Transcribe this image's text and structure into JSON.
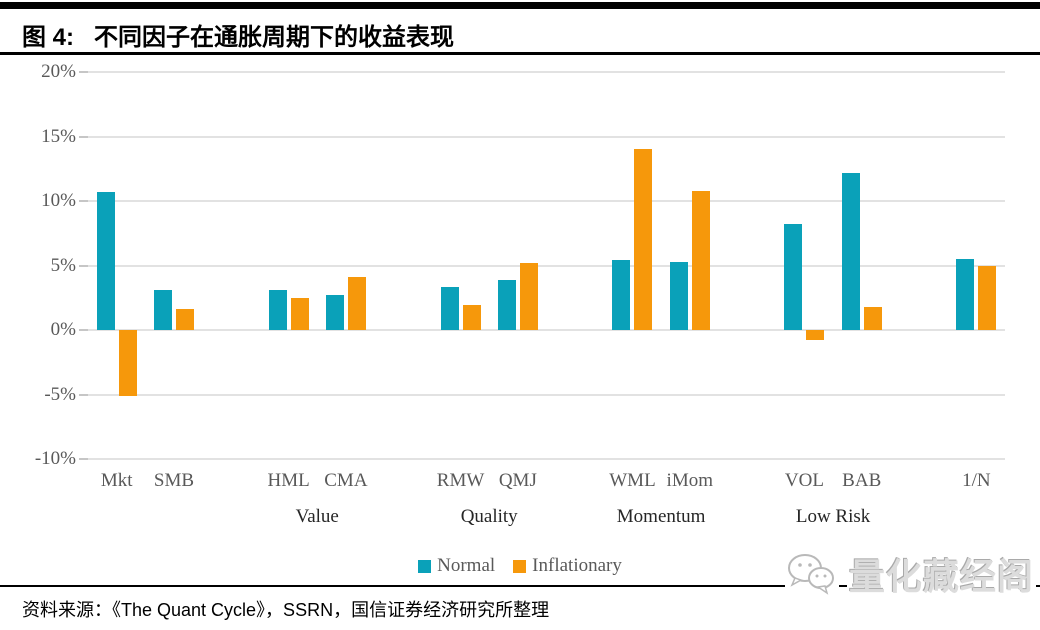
{
  "header": {
    "figure_label": "图 4:",
    "title": "不同因子在通胀周期下的收益表现"
  },
  "chart_data": {
    "type": "bar",
    "title": "不同因子在通胀周期下的收益表现",
    "categories": [
      "Mkt",
      "SMB",
      "HML",
      "CMA",
      "RMW",
      "QMJ",
      "WML",
      "iMom",
      "VOL",
      "BAB",
      "1/N"
    ],
    "groups": [
      {
        "label": "",
        "categories": [
          "Mkt",
          "SMB"
        ]
      },
      {
        "label": "Value",
        "categories": [
          "HML",
          "CMA"
        ]
      },
      {
        "label": "Quality",
        "categories": [
          "RMW",
          "QMJ"
        ]
      },
      {
        "label": "Momentum",
        "categories": [
          "WML",
          "iMom"
        ]
      },
      {
        "label": "Low Risk",
        "categories": [
          "VOL",
          "BAB"
        ]
      },
      {
        "label": "",
        "categories": [
          "1/N"
        ]
      }
    ],
    "series": [
      {
        "name": "Normal",
        "color": "#0AA1B9",
        "values": [
          10.7,
          3.1,
          3.1,
          2.7,
          3.3,
          3.9,
          5.4,
          5.3,
          8.2,
          12.2,
          5.5
        ]
      },
      {
        "name": "Inflationary",
        "color": "#F6980B",
        "values": [
          -5.1,
          1.6,
          2.5,
          4.1,
          1.9,
          5.2,
          14.0,
          10.8,
          -0.8,
          1.8,
          5.0
        ]
      }
    ],
    "y_ticks": [
      {
        "label": "20%",
        "value": 20
      },
      {
        "label": "15%",
        "value": 15
      },
      {
        "label": "10%",
        "value": 10
      },
      {
        "label": "5%",
        "value": 5
      },
      {
        "label": "0%",
        "value": 0
      },
      {
        "label": "-5%",
        "value": -5
      },
      {
        "label": "-10%",
        "value": -10
      }
    ],
    "ylim": [
      -10,
      20
    ],
    "unit": "%",
    "grid": "horizontal",
    "legend_position": "bottom"
  },
  "footer": {
    "source": "资料来源：《The Quant Cycle》，SSRN，国信证券经济研究所整理"
  },
  "watermark": {
    "text": "量化藏经阁",
    "icon": "wechat-chat-bubbles-icon"
  }
}
